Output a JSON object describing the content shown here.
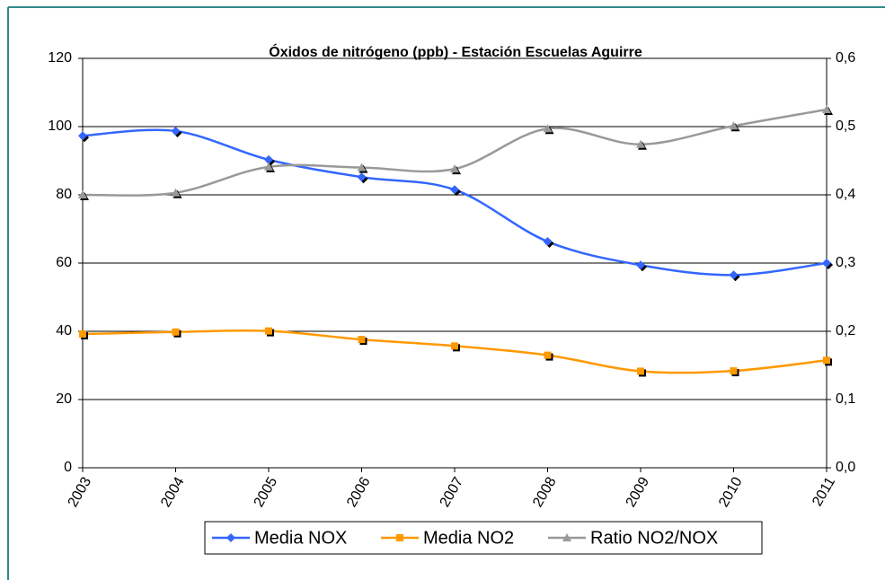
{
  "chart_data": {
    "type": "line",
    "title": "Óxidos de nitrógeno (ppb) - Estación Escuelas Aguirre",
    "categories": [
      "2003",
      "2004",
      "2005",
      "2006",
      "2007",
      "2008",
      "2009",
      "2010",
      "2011"
    ],
    "series": [
      {
        "name": "Media NOX",
        "color": "#3366ff",
        "marker": "diamond",
        "values": [
          97.3,
          98.7,
          90.3,
          85.2,
          81.5,
          66.3,
          59.4,
          56.5,
          60.0
        ]
      },
      {
        "name": "Media NO2",
        "color": "#ff9900",
        "marker": "square",
        "values": [
          39.2,
          39.8,
          40.1,
          37.6,
          35.7,
          33.0,
          28.3,
          28.4,
          31.5
        ]
      },
      {
        "name": "Ratio NO2/NOX",
        "color": "#999999",
        "marker": "triangle",
        "axis": "y2",
        "values": [
          0.4,
          0.403,
          0.441,
          0.44,
          0.438,
          0.497,
          0.474,
          0.501,
          0.525
        ]
      }
    ],
    "ylim": [
      0,
      120
    ],
    "yticks": [
      0,
      20,
      40,
      60,
      80,
      100,
      120
    ],
    "y2lim": [
      0,
      0.6
    ],
    "y2ticks": [
      {
        "value": 0,
        "label": "0,0"
      },
      {
        "value": 0.1,
        "label": "0,1"
      },
      {
        "value": 0.2,
        "label": "0,2"
      },
      {
        "value": 0.3,
        "label": "0,3"
      },
      {
        "value": 0.4,
        "label": "0,4"
      },
      {
        "value": 0.5,
        "label": "0,5"
      },
      {
        "value": 0.6,
        "label": "0,6"
      }
    ],
    "grid": true,
    "legend": "bottom",
    "smooth": true
  }
}
